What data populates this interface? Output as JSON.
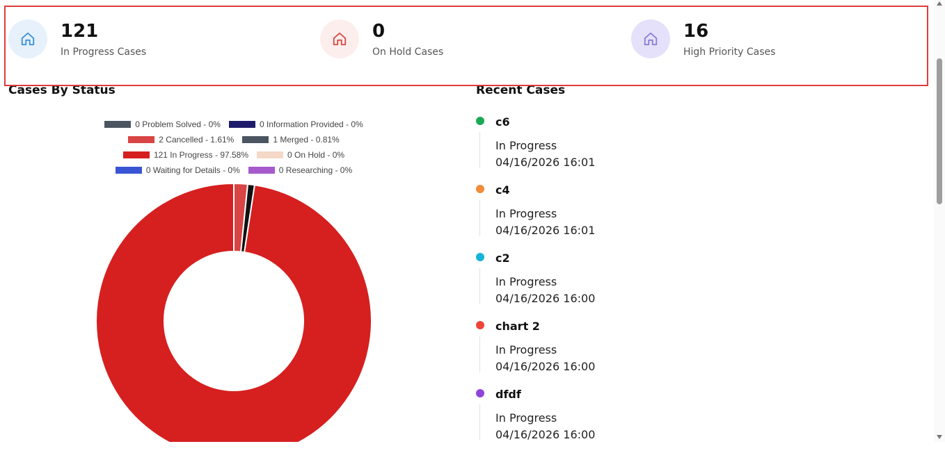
{
  "stats": [
    {
      "value": "121",
      "label": "In Progress Cases",
      "icon": "home-icon",
      "color": "#3b8fd6",
      "bg": "#e6f1fb"
    },
    {
      "value": "0",
      "label": "On Hold Cases",
      "icon": "home-icon",
      "color": "#d84a3f",
      "bg": "#fdeeee"
    },
    {
      "value": "16",
      "label": "High Priority Cases",
      "icon": "home-icon",
      "color": "#8c7ad6",
      "bg": "#e5e1fa"
    }
  ],
  "cases_by_status": {
    "title": "Cases By Status",
    "legend": [
      {
        "label": "0 Problem Solved - 0%",
        "color": "#4a5561"
      },
      {
        "label": "0 Information Provided - 0%",
        "color": "#1f1b6b"
      },
      {
        "label": "2 Cancelled - 1.61%",
        "color": "#d94444"
      },
      {
        "label": "1 Merged - 0.81%",
        "color": "#4a5561"
      },
      {
        "label": "121 In Progress - 97.58%",
        "color": "#d61f1f"
      },
      {
        "label": "0 On Hold - 0%",
        "color": "#f5d8c7"
      },
      {
        "label": "0 Waiting for Details - 0%",
        "color": "#3a55d4"
      },
      {
        "label": "0 Researching - 0%",
        "color": "#a75acb"
      }
    ]
  },
  "chart_data": {
    "type": "pie",
    "categories": [
      "Problem Solved",
      "Information Provided",
      "Cancelled",
      "Merged",
      "In Progress",
      "On Hold",
      "Waiting for Details",
      "Researching"
    ],
    "values": [
      0,
      0,
      2,
      1,
      121,
      0,
      0,
      0
    ],
    "colors": [
      "#4a5561",
      "#1f1b6b",
      "#d94444",
      "#111111",
      "#d61f1f",
      "#f5d8c7",
      "#3a55d4",
      "#a75acb"
    ],
    "title": "Cases By Status",
    "legend": "top"
  },
  "recent_cases": {
    "title": "Recent Cases",
    "items": [
      {
        "name": "c6",
        "status": "In Progress",
        "time": "04/16/2026 16:01",
        "color": "#1aaa55"
      },
      {
        "name": "c4",
        "status": "In Progress",
        "time": "04/16/2026 16:01",
        "color": "#f28c38"
      },
      {
        "name": "c2",
        "status": "In Progress",
        "time": "04/16/2026 16:00",
        "color": "#17b4d8"
      },
      {
        "name": "chart 2",
        "status": "In Progress",
        "time": "04/16/2026 16:00",
        "color": "#f04438"
      },
      {
        "name": "dfdf",
        "status": "In Progress",
        "time": "04/16/2026 16:00",
        "color": "#8e44d9"
      }
    ]
  }
}
